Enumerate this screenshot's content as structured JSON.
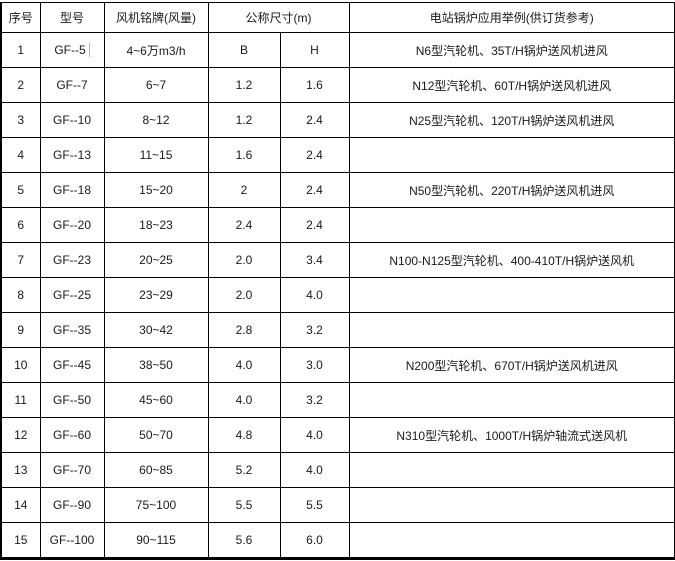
{
  "table": {
    "headers": {
      "index": "序号",
      "model": "型号",
      "airflow": "风机铭牌(风量)",
      "dimensions": "公称尺寸(m)",
      "application": "电站锅炉应用举例(供订货参考)"
    },
    "rows": [
      {
        "index": "1",
        "model": "GF--5",
        "airflow": "4~6万m3/h",
        "b": "B",
        "h": "H",
        "application": "N6型汽轮机、35T/H锅炉送风机进风",
        "cursor": true
      },
      {
        "index": "2",
        "model": "GF--7",
        "airflow": "6~7",
        "b": "1.2",
        "h": "1.6",
        "application": "N12型汽轮机、60T/H锅炉送风机进风"
      },
      {
        "index": "3",
        "model": "GF--10",
        "airflow": "8~12",
        "b": "1.2",
        "h": "2.4",
        "application": "N25型汽轮机、120T/H锅炉送风机进风"
      },
      {
        "index": "4",
        "model": "GF--13",
        "airflow": "11~15",
        "b": "1.6",
        "h": "2.4",
        "application": ""
      },
      {
        "index": "5",
        "model": "GF--18",
        "airflow": "15~20",
        "b": "2",
        "h": "2.4",
        "application": "N50型汽轮机、220T/H锅炉送风机进风"
      },
      {
        "index": "6",
        "model": "GF--20",
        "airflow": "18~23",
        "b": "2.4",
        "h": "2.4",
        "application": ""
      },
      {
        "index": "7",
        "model": "GF--23",
        "airflow": "20~25",
        "b": "2.0",
        "h": "3.4",
        "application": "N100-N125型汽轮机、400-410T/H锅炉送风机"
      },
      {
        "index": "8",
        "model": "GF--25",
        "airflow": "23~29",
        "b": "2.0",
        "h": "4.0",
        "application": ""
      },
      {
        "index": "9",
        "model": "GF--35",
        "airflow": "30~42",
        "b": "2.8",
        "h": "3.2",
        "application": ""
      },
      {
        "index": "10",
        "model": "GF--45",
        "airflow": "38~50",
        "b": "4.0",
        "h": "3.0",
        "application": "N200型汽轮机、670T/H锅炉送风机进风"
      },
      {
        "index": "11",
        "model": "GF--50",
        "airflow": "45~60",
        "b": "4.0",
        "h": "3.2",
        "application": ""
      },
      {
        "index": "12",
        "model": "GF--60",
        "airflow": "50~70",
        "b": "4.8",
        "h": "4.0",
        "application": "N310型汽轮机、1000T/H锅炉轴流式送风机"
      },
      {
        "index": "13",
        "model": "GF--70",
        "airflow": "60~85",
        "b": "5.2",
        "h": "4.0",
        "application": ""
      },
      {
        "index": "14",
        "model": "GF--90",
        "airflow": "75~100",
        "b": "5.5",
        "h": "5.5",
        "application": ""
      },
      {
        "index": "15",
        "model": "GF--100",
        "airflow": "90~115",
        "b": "5.6",
        "h": "6.0",
        "application": ""
      }
    ]
  },
  "colors": {
    "grid_border": "#000000",
    "text": "#1a1a1a",
    "background": "#ffffff",
    "caret": "#a9b6ca"
  }
}
